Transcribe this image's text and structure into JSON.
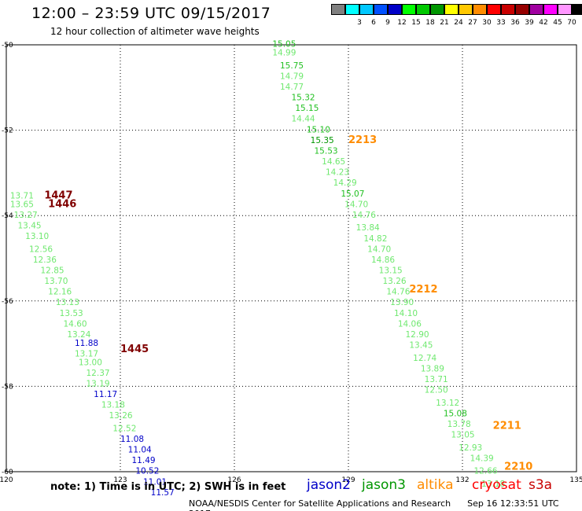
{
  "header": {
    "title": "12:00 – 23:59 UTC 09/15/2017",
    "subtitle": "12 hour collection of altimeter wave heights"
  },
  "legend": {
    "unit": "(ft)",
    "bins": [
      {
        "label": "",
        "color": "#808080"
      },
      {
        "label": "3",
        "color": "#00ffff"
      },
      {
        "label": "6",
        "color": "#00c8ff"
      },
      {
        "label": "9",
        "color": "#0050ff"
      },
      {
        "label": "12",
        "color": "#0000c8"
      },
      {
        "label": "15",
        "color": "#00ff00"
      },
      {
        "label": "18",
        "color": "#00c800"
      },
      {
        "label": "21",
        "color": "#009600"
      },
      {
        "label": "24",
        "color": "#ffff00"
      },
      {
        "label": "27",
        "color": "#ffc800"
      },
      {
        "label": "30",
        "color": "#ff8c00"
      },
      {
        "label": "33",
        "color": "#ff0000"
      },
      {
        "label": "36",
        "color": "#c80000"
      },
      {
        "label": "39",
        "color": "#960000"
      },
      {
        "label": "42",
        "color": "#a000a0"
      },
      {
        "label": "45",
        "color": "#ff00ff"
      },
      {
        "label": "70",
        "color": "#ff96ff"
      },
      {
        "label": "",
        "color": "#000000"
      }
    ]
  },
  "colors": {
    "green_light": "#6fe86f",
    "green_mid": "#22c022",
    "green_dark": "#009600",
    "blue": "#0000c8",
    "dark_red": "#800000",
    "orange": "#ff8c00",
    "grid": "#000000"
  },
  "map": {
    "lon_ticks": [
      "120",
      "123",
      "126",
      "129",
      "132",
      "135"
    ],
    "lat_ticks": [
      "-50",
      "-52",
      "-54",
      "-56",
      "-58",
      "-60"
    ],
    "tracks": [
      {
        "satellite": "jason3",
        "time_labels": [
          {
            "text": "2213",
            "lon": 129.0,
            "lat": -52.3
          },
          {
            "text": "2212",
            "lon": 130.6,
            "lat": -55.8
          },
          {
            "text": "2211",
            "lon": 132.8,
            "lat": -59.0
          },
          {
            "text": "2210",
            "lon": 133.1,
            "lat": -59.95
          }
        ]
      },
      {
        "satellite": "cryosat",
        "time_labels": [
          {
            "text": "1447",
            "lon": 121.0,
            "lat": -53.6
          },
          {
            "text": "1446",
            "lon": 121.1,
            "lat": -53.8
          },
          {
            "text": "1445",
            "lon": 123.0,
            "lat": -57.2
          }
        ]
      }
    ],
    "points": [
      {
        "v": "15.05",
        "lon": 127.0,
        "lat": -50.05,
        "c": "green_mid"
      },
      {
        "v": "14.99",
        "lon": 127.0,
        "lat": -50.25,
        "c": "green_light"
      },
      {
        "v": "15.75",
        "lon": 127.2,
        "lat": -50.55,
        "c": "green_mid"
      },
      {
        "v": "14.79",
        "lon": 127.2,
        "lat": -50.8,
        "c": "green_light"
      },
      {
        "v": "14.77",
        "lon": 127.2,
        "lat": -51.05,
        "c": "green_light"
      },
      {
        "v": "15.32",
        "lon": 127.5,
        "lat": -51.3,
        "c": "green_mid"
      },
      {
        "v": "15.15",
        "lon": 127.6,
        "lat": -51.55,
        "c": "green_mid"
      },
      {
        "v": "14.44",
        "lon": 127.5,
        "lat": -51.8,
        "c": "green_light"
      },
      {
        "v": "15.10",
        "lon": 127.9,
        "lat": -52.05,
        "c": "green_mid"
      },
      {
        "v": "15.35",
        "lon": 128.0,
        "lat": -52.3,
        "c": "green_dark"
      },
      {
        "v": "15.53",
        "lon": 128.1,
        "lat": -52.55,
        "c": "green_mid"
      },
      {
        "v": "14.65",
        "lon": 128.3,
        "lat": -52.8,
        "c": "green_light"
      },
      {
        "v": "14.23",
        "lon": 128.4,
        "lat": -53.05,
        "c": "green_light"
      },
      {
        "v": "14.29",
        "lon": 128.6,
        "lat": -53.3,
        "c": "green_light"
      },
      {
        "v": "15.07",
        "lon": 128.8,
        "lat": -53.55,
        "c": "green_mid"
      },
      {
        "v": "14.70",
        "lon": 128.9,
        "lat": -53.8,
        "c": "green_light"
      },
      {
        "v": "14.76",
        "lon": 129.1,
        "lat": -54.05,
        "c": "green_light"
      },
      {
        "v": "13.84",
        "lon": 129.2,
        "lat": -54.35,
        "c": "green_light"
      },
      {
        "v": "14.82",
        "lon": 129.4,
        "lat": -54.6,
        "c": "green_light"
      },
      {
        "v": "14.70",
        "lon": 129.5,
        "lat": -54.85,
        "c": "green_light"
      },
      {
        "v": "14.86",
        "lon": 129.6,
        "lat": -55.1,
        "c": "green_light"
      },
      {
        "v": "13.15",
        "lon": 129.8,
        "lat": -55.35,
        "c": "green_light"
      },
      {
        "v": "13.26",
        "lon": 129.9,
        "lat": -55.6,
        "c": "green_light"
      },
      {
        "v": "14.76",
        "lon": 130.0,
        "lat": -55.85,
        "c": "green_light"
      },
      {
        "v": "13.90",
        "lon": 130.1,
        "lat": -56.1,
        "c": "green_light"
      },
      {
        "v": "14.10",
        "lon": 130.2,
        "lat": -56.35,
        "c": "green_light"
      },
      {
        "v": "14.06",
        "lon": 130.3,
        "lat": -56.6,
        "c": "green_light"
      },
      {
        "v": "12.90",
        "lon": 130.5,
        "lat": -56.85,
        "c": "green_light"
      },
      {
        "v": "13.45",
        "lon": 130.6,
        "lat": -57.1,
        "c": "green_light"
      },
      {
        "v": "12.74",
        "lon": 130.7,
        "lat": -57.4,
        "c": "green_light"
      },
      {
        "v": "13.89",
        "lon": 130.9,
        "lat": -57.65,
        "c": "green_light"
      },
      {
        "v": "13.71",
        "lon": 131.0,
        "lat": -57.9,
        "c": "green_light"
      },
      {
        "v": "12.50",
        "lon": 131.0,
        "lat": -58.15,
        "c": "green_light"
      },
      {
        "v": "13.12",
        "lon": 131.3,
        "lat": -58.45,
        "c": "green_light"
      },
      {
        "v": "15.08",
        "lon": 131.5,
        "lat": -58.7,
        "c": "green_mid"
      },
      {
        "v": "13.78",
        "lon": 131.6,
        "lat": -58.95,
        "c": "green_light"
      },
      {
        "v": "13.05",
        "lon": 131.7,
        "lat": -59.2,
        "c": "green_light"
      },
      {
        "v": "12.93",
        "lon": 131.9,
        "lat": -59.5,
        "c": "green_light"
      },
      {
        "v": "14.39",
        "lon": 132.2,
        "lat": -59.75,
        "c": "green_light"
      },
      {
        "v": "12.66",
        "lon": 132.3,
        "lat": -60.05,
        "c": "green_light"
      },
      {
        "v": "13.18",
        "lon": 132.5,
        "lat": -60.35,
        "c": "green_light"
      },
      {
        "v": "13.71",
        "lon": 120.1,
        "lat": -53.6,
        "c": "green_light"
      },
      {
        "v": "13.65",
        "lon": 120.1,
        "lat": -53.8,
        "c": "green_light"
      },
      {
        "v": "13.27",
        "lon": 120.2,
        "lat": -54.05,
        "c": "green_light"
      },
      {
        "v": "13.45",
        "lon": 120.3,
        "lat": -54.3,
        "c": "green_light"
      },
      {
        "v": "13.10",
        "lon": 120.5,
        "lat": -54.55,
        "c": "green_light"
      },
      {
        "v": "12.56",
        "lon": 120.6,
        "lat": -54.85,
        "c": "green_light"
      },
      {
        "v": "12.36",
        "lon": 120.7,
        "lat": -55.1,
        "c": "green_light"
      },
      {
        "v": "12.85",
        "lon": 120.9,
        "lat": -55.35,
        "c": "green_light"
      },
      {
        "v": "13.70",
        "lon": 121.0,
        "lat": -55.6,
        "c": "green_light"
      },
      {
        "v": "12.16",
        "lon": 121.1,
        "lat": -55.85,
        "c": "green_light"
      },
      {
        "v": "13.13",
        "lon": 121.3,
        "lat": -56.1,
        "c": "green_light"
      },
      {
        "v": "13.53",
        "lon": 121.4,
        "lat": -56.35,
        "c": "green_light"
      },
      {
        "v": "14.60",
        "lon": 121.5,
        "lat": -56.6,
        "c": "green_light"
      },
      {
        "v": "13.24",
        "lon": 121.6,
        "lat": -56.85,
        "c": "green_light"
      },
      {
        "v": "11.88",
        "lon": 121.8,
        "lat": -57.05,
        "c": "blue"
      },
      {
        "v": "13.17",
        "lon": 121.8,
        "lat": -57.3,
        "c": "green_light"
      },
      {
        "v": "13.00",
        "lon": 121.9,
        "lat": -57.5,
        "c": "green_light"
      },
      {
        "v": "12.37",
        "lon": 122.1,
        "lat": -57.75,
        "c": "green_light"
      },
      {
        "v": "13.19",
        "lon": 122.1,
        "lat": -58.0,
        "c": "green_light"
      },
      {
        "v": "11.17",
        "lon": 122.3,
        "lat": -58.25,
        "c": "blue"
      },
      {
        "v": "13.18",
        "lon": 122.5,
        "lat": -58.5,
        "c": "green_light"
      },
      {
        "v": "13.26",
        "lon": 122.7,
        "lat": -58.75,
        "c": "green_light"
      },
      {
        "v": "12.52",
        "lon": 122.8,
        "lat": -59.05,
        "c": "green_light"
      },
      {
        "v": "11.08",
        "lon": 123.0,
        "lat": -59.3,
        "c": "blue"
      },
      {
        "v": "11.04",
        "lon": 123.2,
        "lat": -59.55,
        "c": "blue"
      },
      {
        "v": "11.49",
        "lon": 123.3,
        "lat": -59.8,
        "c": "blue"
      },
      {
        "v": "10.52",
        "lon": 123.4,
        "lat": -60.05,
        "c": "blue"
      },
      {
        "v": "11.01",
        "lon": 123.6,
        "lat": -60.3,
        "c": "blue"
      },
      {
        "v": "11.57",
        "lon": 123.8,
        "lat": -60.55,
        "c": "blue"
      }
    ]
  },
  "footer": {
    "note": "note: 1) Time is in UTC; 2) SWH is in feet",
    "credit": "NOAA/NESDIS Center for Satellite Applications and Research",
    "timestamp": "Sep 16 12:33:51 UTC 2017",
    "satellites": [
      {
        "name": "jason2",
        "color": "#0000c8"
      },
      {
        "name": "jason3",
        "color": "#009600"
      },
      {
        "name": "altika",
        "color": "#ff8c00"
      },
      {
        "name": "cryosat",
        "color": "#ff0000"
      },
      {
        "name": "s3a",
        "color": "#c80000"
      }
    ]
  }
}
